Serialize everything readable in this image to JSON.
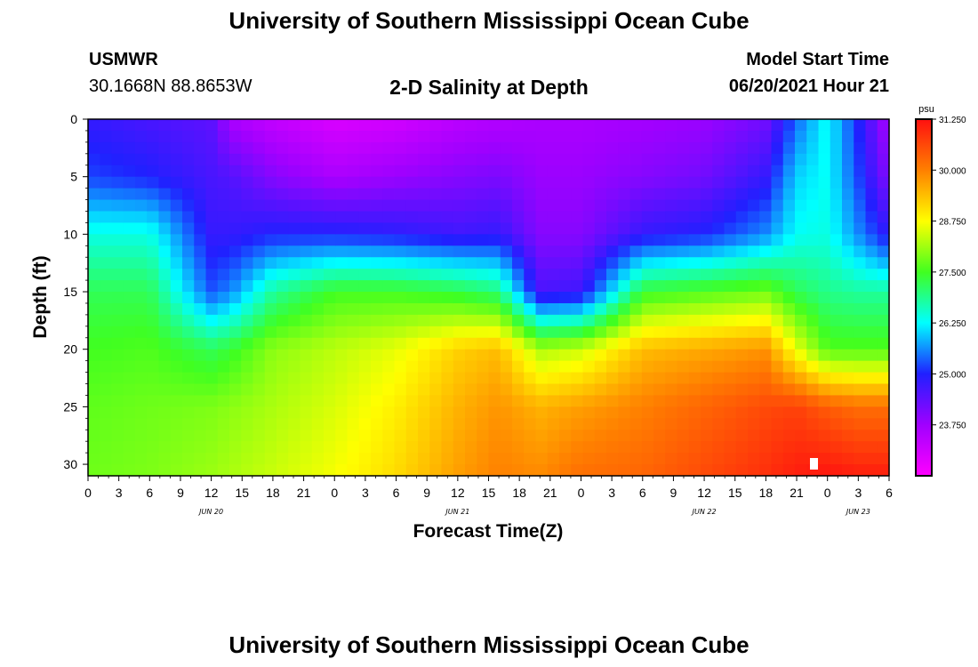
{
  "header": {
    "top_title": "University of Southern Mississippi Ocean Cube",
    "bottom_title": "University of Southern Mississippi Ocean Cube",
    "station": "USMWR",
    "coordinates": "30.1668N  88.8653W",
    "plot_title": "2-D Salinity at Depth",
    "model_start_label": "Model Start Time",
    "model_start_value": "06/20/2021 Hour 21"
  },
  "chart_data": {
    "type": "heatmap",
    "title": "2-D Salinity at Depth",
    "xlabel": "Forecast Time(Z)",
    "ylabel": "Depth (ft)",
    "x_unit": "hours since 06/20 00Z",
    "xlim": [
      0,
      78
    ],
    "ylim": [
      31,
      0
    ],
    "x_ticks": [
      "0",
      "3",
      "6",
      "9",
      "12",
      "15",
      "18",
      "21",
      "0",
      "3",
      "6",
      "9",
      "12",
      "15",
      "18",
      "21",
      "0",
      "3",
      "6",
      "9",
      "12",
      "15",
      "18",
      "21",
      "0",
      "3",
      "6"
    ],
    "y_ticks": [
      "0",
      "5",
      "10",
      "15",
      "20",
      "25",
      "30"
    ],
    "date_labels": [
      {
        "label": "JUN 20",
        "hour": 12
      },
      {
        "label": "JUN 21",
        "hour": 36
      },
      {
        "label": "JUN 22",
        "hour": 60
      },
      {
        "label": "JUN 23",
        "hour": 75
      }
    ],
    "colorbar": {
      "unit": "psu",
      "min": 22.5,
      "max": 31.25,
      "tick_labels": [
        "31.250",
        "30.000",
        "28.750",
        "27.500",
        "26.250",
        "25.000",
        "23.750"
      ],
      "colors": [
        "#ff00ff",
        "#a000ff",
        "#2020ff",
        "#00ffff",
        "#40ff20",
        "#ffff00",
        "#ff8000",
        "#ff1010"
      ]
    },
    "profiles": {
      "depths_ft": [
        0,
        5,
        10,
        15,
        20,
        25,
        31
      ],
      "series": [
        {
          "hour": 0,
          "values": [
            24.8,
            25.2,
            26.4,
            27.2,
            27.5,
            27.7,
            27.8
          ]
        },
        {
          "hour": 6,
          "values": [
            24.6,
            25.0,
            26.4,
            27.2,
            27.6,
            27.8,
            27.9
          ]
        },
        {
          "hour": 12,
          "values": [
            24.4,
            24.6,
            24.8,
            25.3,
            27.2,
            27.9,
            28.1
          ]
        },
        {
          "hour": 14,
          "values": [
            23.6,
            24.5,
            24.8,
            25.6,
            27.4,
            28.0,
            28.2
          ]
        },
        {
          "hour": 18,
          "values": [
            23.3,
            24.0,
            25.0,
            26.8,
            28.0,
            28.2,
            28.4
          ]
        },
        {
          "hour": 24,
          "values": [
            23.0,
            23.6,
            25.0,
            27.5,
            28.3,
            28.5,
            28.7
          ]
        },
        {
          "hour": 30,
          "values": [
            23.1,
            23.8,
            24.9,
            27.5,
            28.6,
            28.9,
            29.1
          ]
        },
        {
          "hour": 36,
          "values": [
            23.4,
            24.0,
            24.7,
            27.3,
            29.2,
            29.5,
            29.7
          ]
        },
        {
          "hour": 40,
          "values": [
            23.5,
            24.1,
            24.8,
            27.0,
            29.4,
            29.8,
            30.0
          ]
        },
        {
          "hour": 44,
          "values": [
            23.6,
            23.8,
            24.0,
            24.6,
            28.2,
            29.5,
            29.9
          ]
        },
        {
          "hour": 48,
          "values": [
            23.6,
            23.8,
            24.0,
            24.7,
            28.4,
            29.7,
            30.2
          ]
        },
        {
          "hour": 54,
          "values": [
            23.7,
            24.0,
            24.8,
            27.4,
            29.4,
            30.0,
            30.3
          ]
        },
        {
          "hour": 60,
          "values": [
            23.8,
            24.2,
            25.0,
            27.6,
            29.6,
            30.3,
            30.6
          ]
        },
        {
          "hour": 66,
          "values": [
            24.2,
            24.8,
            25.6,
            27.8,
            29.8,
            30.6,
            30.9
          ]
        },
        {
          "hour": 69,
          "values": [
            25.4,
            26.0,
            26.3,
            27.2,
            28.6,
            30.7,
            31.1
          ]
        },
        {
          "hour": 72,
          "values": [
            26.3,
            26.3,
            26.4,
            26.9,
            27.6,
            30.4,
            31.2
          ]
        },
        {
          "hour": 75,
          "values": [
            25.0,
            25.2,
            25.6,
            26.8,
            27.6,
            30.2,
            31.1
          ]
        },
        {
          "hour": 78,
          "values": [
            23.6,
            24.0,
            24.8,
            26.8,
            27.6,
            30.2,
            31.1
          ]
        }
      ]
    }
  }
}
